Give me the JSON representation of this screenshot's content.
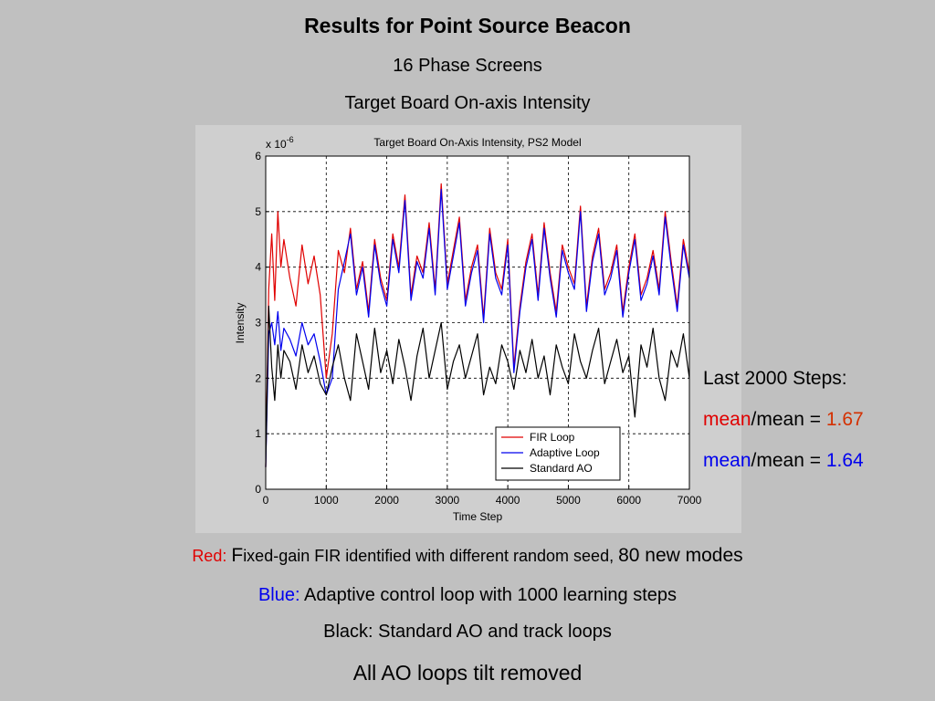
{
  "slide": {
    "title": "Results for Point Source Beacon",
    "subtitle1": "16 Phase Screens",
    "subtitle2": "Target Board On-axis Intensity"
  },
  "stats": {
    "header": "Last 2000 Steps:",
    "row1": {
      "term": "mean",
      "rest": "/mean = ",
      "value": "1.67"
    },
    "row2": {
      "term": "mean",
      "rest": "/mean = ",
      "value": "1.64"
    }
  },
  "captions": {
    "red": {
      "prefix": "Red:",
      "text_large_f": "F",
      "text": "ixed-gain FIR identified with different random seed, ",
      "text_large": "80 new modes"
    },
    "blue": {
      "prefix": "Blue:",
      "text": " Adaptive control loop with 1000 learning steps"
    },
    "black": {
      "text": "Black: Standard AO and track loops"
    },
    "footer": "All AO loops tilt removed"
  },
  "chart_data": {
    "type": "line",
    "title": "Target Board On-Axis Intensity, PS2 Model",
    "xlabel": "Time Step",
    "ylabel": "Intensity",
    "y_multiplier_label": "x 10",
    "y_multiplier_exp": "-6",
    "xlim": [
      0,
      7000
    ],
    "ylim": [
      0,
      6
    ],
    "xticks": [
      0,
      1000,
      2000,
      3000,
      4000,
      5000,
      6000,
      7000
    ],
    "yticks": [
      0,
      1,
      2,
      3,
      4,
      5,
      6
    ],
    "grid": true,
    "legend_position": "bottom-right",
    "x": [
      0,
      50,
      100,
      150,
      200,
      250,
      300,
      400,
      500,
      600,
      700,
      800,
      900,
      1000,
      1100,
      1200,
      1300,
      1400,
      1500,
      1600,
      1700,
      1800,
      1900,
      2000,
      2100,
      2200,
      2300,
      2400,
      2500,
      2600,
      2700,
      2800,
      2900,
      3000,
      3100,
      3200,
      3300,
      3400,
      3500,
      3600,
      3700,
      3800,
      3900,
      4000,
      4100,
      4200,
      4300,
      4400,
      4500,
      4600,
      4700,
      4800,
      4900,
      5000,
      5100,
      5200,
      5300,
      5400,
      5500,
      5600,
      5700,
      5800,
      5900,
      6000,
      6100,
      6200,
      6300,
      6400,
      6500,
      6600,
      6700,
      6800,
      6900,
      7000
    ],
    "series": [
      {
        "name": "FIR Loop",
        "color": "#e00000",
        "values": [
          0.4,
          3.6,
          4.6,
          3.4,
          5.0,
          4.0,
          4.5,
          3.8,
          3.3,
          4.4,
          3.7,
          4.2,
          3.5,
          2.0,
          2.8,
          4.3,
          3.9,
          4.7,
          3.6,
          4.1,
          3.2,
          4.5,
          3.8,
          3.4,
          4.6,
          4.0,
          5.3,
          3.5,
          4.2,
          3.9,
          4.8,
          3.6,
          5.5,
          3.7,
          4.3,
          4.9,
          3.4,
          4.0,
          4.4,
          3.1,
          4.7,
          3.9,
          3.6,
          4.5,
          2.2,
          3.3,
          4.1,
          4.6,
          3.5,
          4.8,
          3.9,
          3.2,
          4.4,
          4.0,
          3.7,
          5.1,
          3.3,
          4.2,
          4.7,
          3.6,
          3.9,
          4.4,
          3.2,
          4.0,
          4.6,
          3.5,
          3.8,
          4.3,
          3.6,
          5.0,
          4.1,
          3.3,
          4.5,
          3.9
        ]
      },
      {
        "name": "Adaptive Loop",
        "color": "#0000ee",
        "values": [
          0.4,
          2.8,
          3.0,
          2.6,
          3.2,
          2.5,
          2.9,
          2.7,
          2.4,
          3.0,
          2.6,
          2.8,
          2.3,
          1.7,
          2.0,
          3.6,
          4.1,
          4.6,
          3.5,
          4.0,
          3.1,
          4.4,
          3.7,
          3.3,
          4.5,
          3.9,
          5.2,
          3.4,
          4.1,
          3.8,
          4.7,
          3.5,
          5.4,
          3.6,
          4.2,
          4.8,
          3.3,
          3.9,
          4.3,
          3.0,
          4.6,
          3.8,
          3.5,
          4.4,
          2.1,
          3.2,
          4.0,
          4.5,
          3.4,
          4.7,
          3.8,
          3.1,
          4.3,
          3.9,
          3.6,
          5.0,
          3.2,
          4.1,
          4.6,
          3.5,
          3.8,
          4.3,
          3.1,
          3.9,
          4.5,
          3.4,
          3.7,
          4.2,
          3.5,
          4.9,
          4.0,
          3.2,
          4.4,
          3.8
        ]
      },
      {
        "name": "Standard AO",
        "color": "#000000",
        "values": [
          0.4,
          3.3,
          2.2,
          1.6,
          2.6,
          2.0,
          2.5,
          2.3,
          1.8,
          2.6,
          2.1,
          2.4,
          1.9,
          1.7,
          2.2,
          2.6,
          2.0,
          1.6,
          2.8,
          2.3,
          1.8,
          2.9,
          2.1,
          2.5,
          1.9,
          2.7,
          2.2,
          1.6,
          2.4,
          2.9,
          2.0,
          2.5,
          3.0,
          1.8,
          2.3,
          2.6,
          2.0,
          2.4,
          2.8,
          1.7,
          2.2,
          1.9,
          2.6,
          2.3,
          1.8,
          2.5,
          2.1,
          2.7,
          2.0,
          2.4,
          1.7,
          2.6,
          2.2,
          1.9,
          2.8,
          2.3,
          2.0,
          2.5,
          2.9,
          1.9,
          2.3,
          2.7,
          2.1,
          2.4,
          1.3,
          2.6,
          2.2,
          2.9,
          2.0,
          1.6,
          2.5,
          2.2,
          2.8,
          2.0
        ]
      }
    ]
  }
}
